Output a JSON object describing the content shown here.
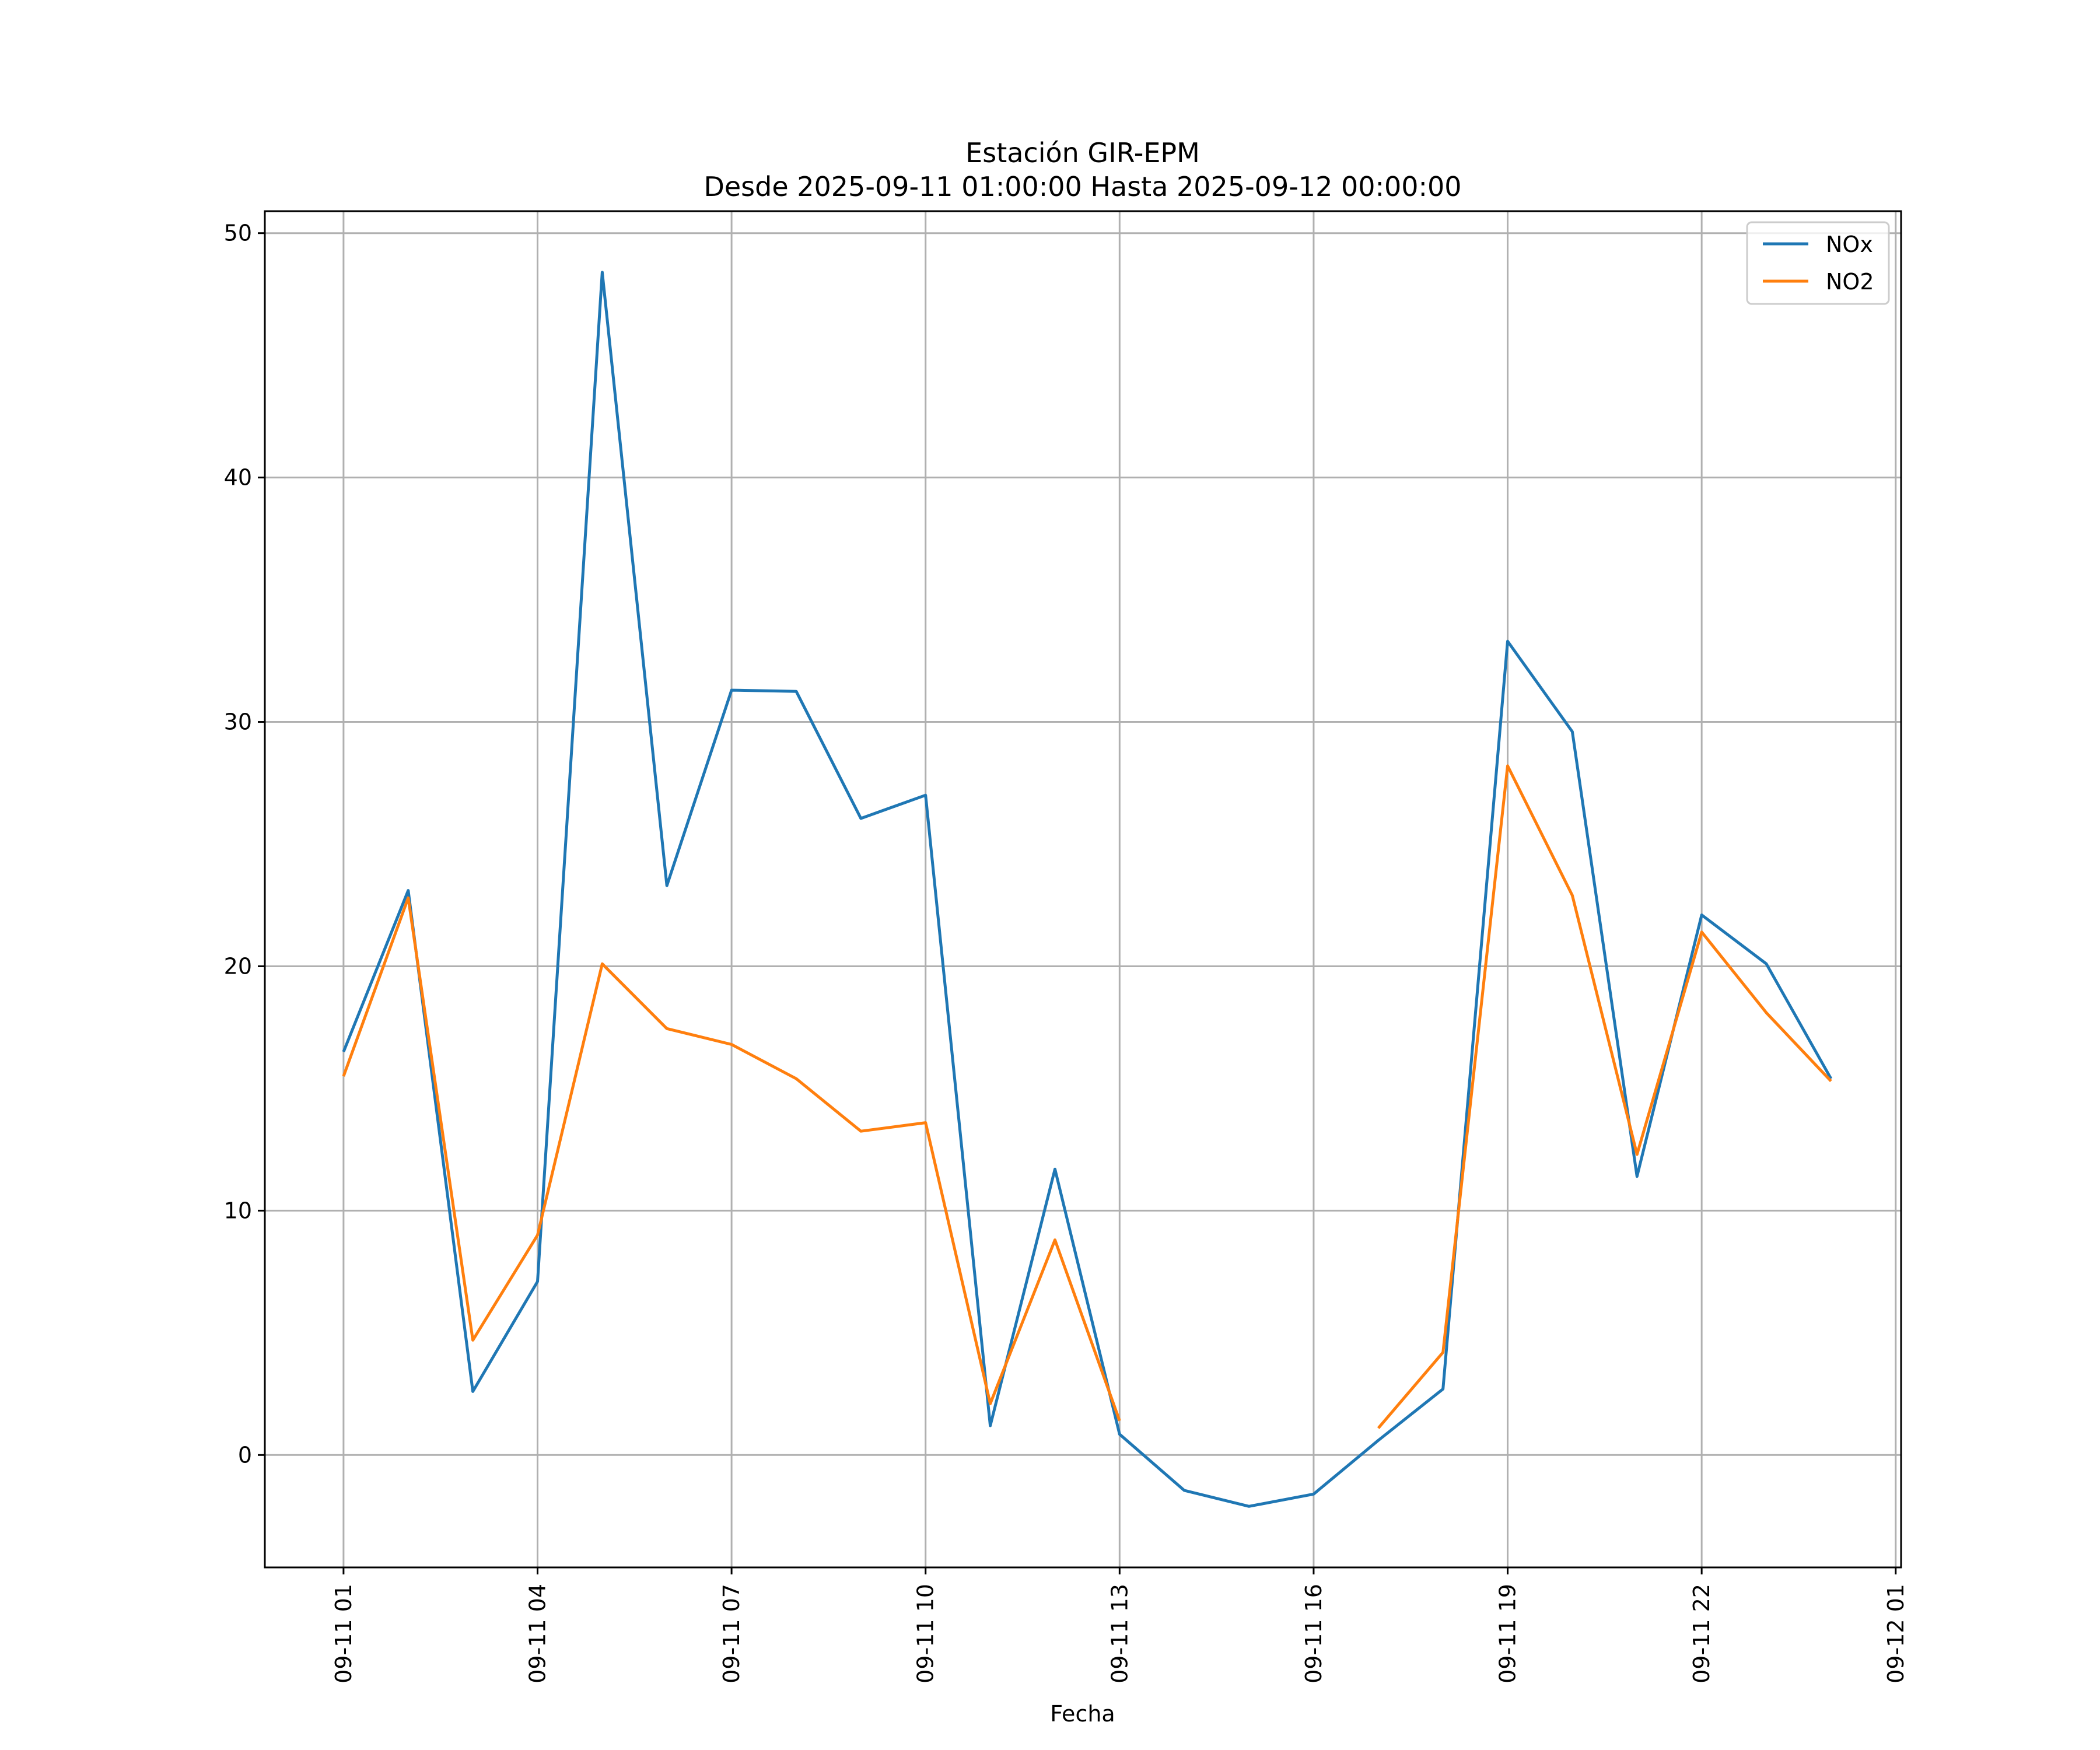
{
  "chart_data": {
    "type": "line",
    "title": "Estación GIR-EPM",
    "subtitle": "Desde 2025-09-11 01:00:00 Hasta 2025-09-12 00:00:00",
    "xlabel": "Fecha",
    "ylabel": "",
    "x": [
      "2025-09-11 01:00",
      "2025-09-11 02:00",
      "2025-09-11 03:00",
      "2025-09-11 04:00",
      "2025-09-11 05:00",
      "2025-09-11 06:00",
      "2025-09-11 07:00",
      "2025-09-11 08:00",
      "2025-09-11 09:00",
      "2025-09-11 10:00",
      "2025-09-11 11:00",
      "2025-09-11 12:00",
      "2025-09-11 13:00",
      "2025-09-11 14:00",
      "2025-09-11 15:00",
      "2025-09-11 16:00",
      "2025-09-11 17:00",
      "2025-09-11 18:00",
      "2025-09-11 19:00",
      "2025-09-11 20:00",
      "2025-09-11 21:00",
      "2025-09-11 22:00",
      "2025-09-11 23:00",
      "2025-09-12 00:00"
    ],
    "xlim": [
      "2025-09-10 23:47",
      "2025-09-12 01:05"
    ],
    "ylim": [
      -4.6,
      50.9
    ],
    "yticks": [
      0,
      10,
      20,
      30,
      40,
      50
    ],
    "xticks": [
      "2025-09-11 01:00",
      "2025-09-11 04:00",
      "2025-09-11 07:00",
      "2025-09-11 10:00",
      "2025-09-11 13:00",
      "2025-09-11 16:00",
      "2025-09-11 19:00",
      "2025-09-11 22:00",
      "2025-09-12 01:00"
    ],
    "xtick_labels": [
      "09-11 01",
      "09-11 04",
      "09-11 07",
      "09-11 10",
      "09-11 13",
      "09-11 16",
      "09-11 19",
      "09-11 22",
      "09-12 01"
    ],
    "grid": true,
    "legend_position": "top-right",
    "series": [
      {
        "name": "NOx",
        "color": "#1f77b4",
        "values": [
          16.5,
          23.1,
          2.6,
          7.1,
          48.4,
          23.3,
          31.3,
          31.25,
          26.05,
          27.0,
          1.2,
          11.7,
          0.85,
          -1.45,
          -2.1,
          -1.6,
          0.6,
          2.7,
          33.3,
          29.6,
          11.4,
          22.1,
          20.1,
          15.4
        ]
      },
      {
        "name": "NO2",
        "color": "#ff7f0e",
        "values": [
          15.5,
          22.8,
          4.7,
          9.0,
          20.1,
          17.45,
          16.8,
          15.4,
          13.25,
          13.6,
          2.1,
          8.8,
          1.4,
          null,
          null,
          null,
          1.1,
          4.2,
          28.2,
          22.9,
          12.3,
          21.4,
          18.1,
          15.3
        ]
      }
    ]
  }
}
